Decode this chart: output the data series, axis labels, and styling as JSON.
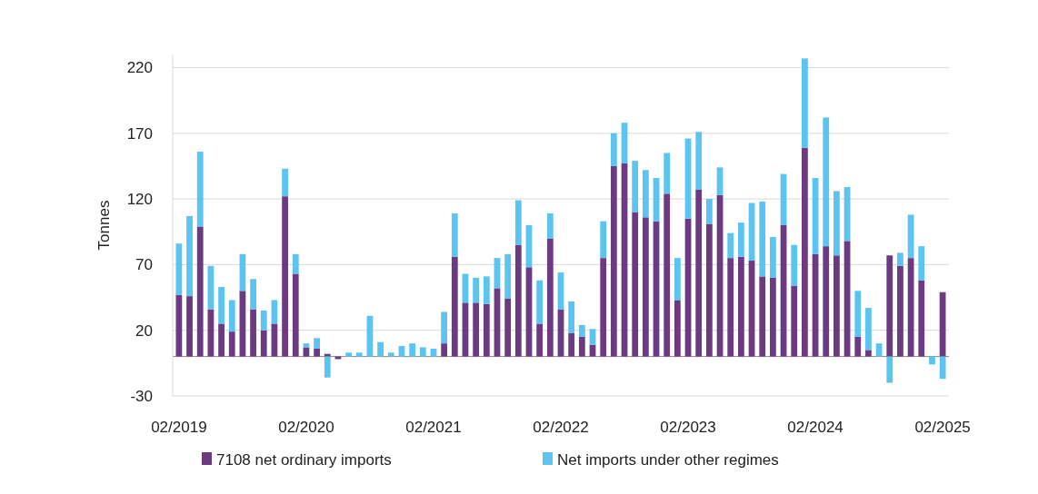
{
  "chart_data": {
    "type": "bar",
    "stacked": true,
    "ylabel": "Tonnes",
    "categories": [
      "02/2019",
      null,
      null,
      null,
      null,
      null,
      null,
      null,
      null,
      null,
      null,
      null,
      "02/2020",
      null,
      null,
      null,
      null,
      null,
      null,
      null,
      null,
      null,
      null,
      null,
      "02/2021",
      null,
      null,
      null,
      null,
      null,
      null,
      null,
      null,
      null,
      null,
      null,
      "02/2022",
      null,
      null,
      null,
      null,
      null,
      null,
      null,
      null,
      null,
      null,
      null,
      "02/2023",
      null,
      null,
      null,
      null,
      null,
      null,
      null,
      null,
      null,
      null,
      null,
      "02/2024",
      null,
      null,
      null,
      null,
      null,
      null,
      null,
      null,
      null,
      null,
      null,
      "02/2025"
    ],
    "series": [
      {
        "name": "7108 net ordinary imports",
        "color": "#6b3a80",
        "values": [
          47,
          46,
          99,
          36,
          25,
          19,
          50,
          36,
          20,
          25,
          122,
          63,
          7,
          6,
          2,
          -2,
          0,
          0,
          0,
          0,
          0,
          0,
          0,
          0,
          0,
          10,
          76,
          41,
          41,
          40,
          52,
          44,
          85,
          68,
          25,
          90,
          36,
          18,
          15,
          9,
          75,
          145,
          147,
          110,
          106,
          103,
          124,
          43,
          105,
          127,
          101,
          123,
          75,
          76,
          73,
          61,
          60,
          100,
          54,
          159,
          78,
          84,
          77,
          88,
          15,
          5,
          0,
          77,
          69,
          75,
          58,
          0,
          49
        ]
      },
      {
        "name": "Net imports under other regimes",
        "color": "#5bc4f1",
        "values": [
          39,
          61,
          57,
          33,
          28,
          24,
          28,
          23,
          15,
          18,
          21,
          15,
          3,
          8,
          -16,
          0,
          3,
          3,
          31,
          11,
          3,
          8,
          10,
          7,
          6,
          24,
          33,
          22,
          19,
          21,
          23,
          34,
          34,
          32,
          33,
          19,
          28,
          24,
          9,
          12,
          28,
          25,
          31,
          39,
          36,
          33,
          31,
          32,
          61,
          44,
          19,
          21,
          19,
          26,
          44,
          57,
          31,
          39,
          31,
          68,
          58,
          98,
          49,
          41,
          35,
          32,
          10,
          -20,
          10,
          33,
          26,
          -6,
          -17
        ]
      }
    ],
    "ylim": [
      -30,
      230
    ],
    "yticks": [
      -30,
      20,
      70,
      120,
      170,
      220
    ],
    "grid": "y",
    "legend": "bottom"
  }
}
